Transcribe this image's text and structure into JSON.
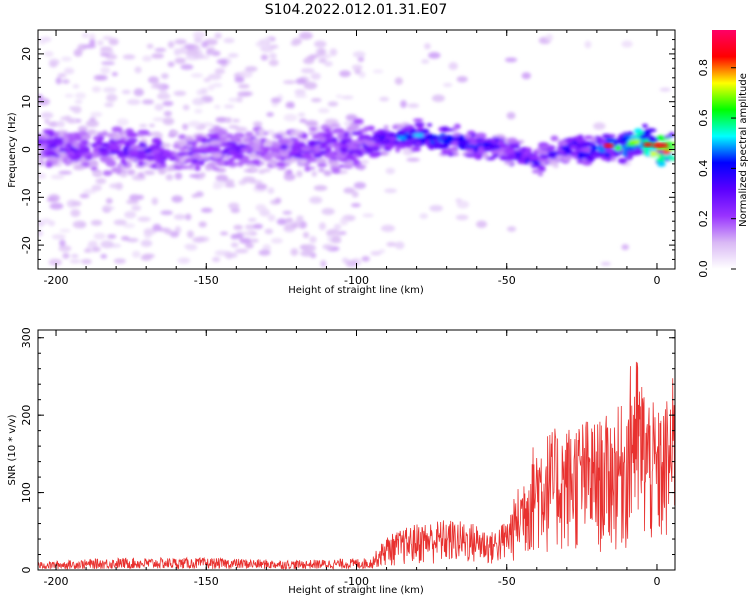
{
  "title": "S104.2022.012.01.31.E07",
  "chart_data": [
    {
      "type": "heatmap",
      "xlabel": "Height of straight line (km)",
      "ylabel": "Frequency (Hz)",
      "xlim": [
        -206,
        6
      ],
      "ylim": [
        -25,
        25
      ],
      "x_ticks": [
        "-200",
        "-150",
        "-100",
        "-50",
        "0"
      ],
      "x_tick_values": [
        -200,
        -150,
        -100,
        -50,
        0
      ],
      "y_ticks": [
        "20",
        "10",
        "0",
        "-10",
        "-20"
      ],
      "y_tick_values": [
        20,
        10,
        0,
        -10,
        -20
      ],
      "colorbar": {
        "label": "Normalized spectral amplitude",
        "range": [
          0,
          0.95
        ],
        "ticks": [
          "0.0",
          "0.2",
          "0.4",
          "0.6",
          "0.8"
        ],
        "tick_values": [
          0,
          0.2,
          0.4,
          0.6,
          0.8
        ],
        "colormap": [
          "#ffffff",
          "#d9b8f5",
          "#9933ff",
          "#5a00ff",
          "#0000ff",
          "#00ffff",
          "#00ff00",
          "#ffff00",
          "#ff0000",
          "#ff0066"
        ]
      },
      "ridge": {
        "x": [
          -205,
          -190,
          -175,
          -160,
          -145,
          -130,
          -115,
          -100,
          -90,
          -80,
          -70,
          -60,
          -50,
          -45,
          -40,
          -35,
          -30,
          -20,
          -10,
          -5,
          0,
          5
        ],
        "y": [
          1,
          0,
          0,
          -1,
          0,
          0,
          0,
          1,
          2,
          3,
          2,
          1,
          0,
          -1,
          -2,
          -1,
          0,
          0,
          1,
          2,
          0,
          0
        ],
        "amplitude": [
          0.3,
          0.25,
          0.3,
          0.25,
          0.3,
          0.25,
          0.28,
          0.3,
          0.4,
          0.45,
          0.45,
          0.4,
          0.35,
          0.4,
          0.35,
          0.3,
          0.35,
          0.45,
          0.6,
          0.7,
          0.85,
          0.9
        ]
      }
    },
    {
      "type": "line",
      "xlabel": "Height of straight line (km)",
      "ylabel": "SNR (10 * v/v)",
      "xlim": [
        -206,
        6
      ],
      "ylim": [
        0,
        310
      ],
      "x_ticks": [
        "-200",
        "-150",
        "-100",
        "-50",
        "0"
      ],
      "x_tick_values": [
        -200,
        -150,
        -100,
        -50,
        0
      ],
      "y_ticks": [
        "300",
        "200",
        "100",
        "0"
      ],
      "y_tick_values": [
        300,
        200,
        100,
        0
      ],
      "color": "#e8312f",
      "series": [
        {
          "envelope_x": [
            -206,
            -180,
            -150,
            -120,
            -95,
            -90,
            -80,
            -70,
            -60,
            -55,
            -50,
            -45,
            -40,
            -35,
            -30,
            -25,
            -20,
            -15,
            -10,
            -8,
            -5,
            0,
            3,
            6
          ],
          "envelope_y": [
            10,
            15,
            15,
            12,
            15,
            40,
            55,
            60,
            55,
            45,
            60,
            110,
            160,
            165,
            170,
            180,
            175,
            185,
            200,
            270,
            230,
            185,
            200,
            235
          ]
        }
      ]
    }
  ]
}
